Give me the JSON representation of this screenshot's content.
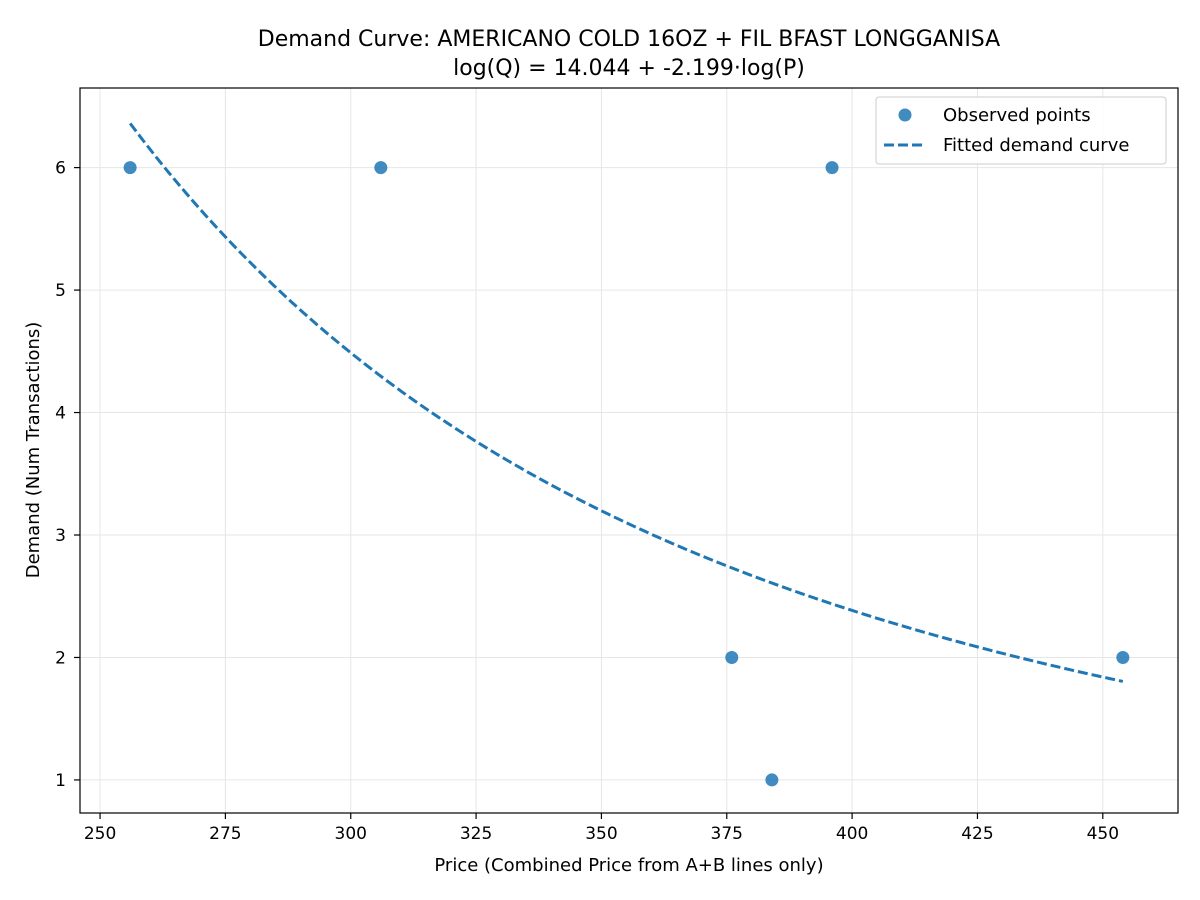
{
  "chart_data": {
    "type": "scatter",
    "title": "Demand Curve: AMERICANO COLD 16OZ + FIL BFAST LONGGANISA",
    "subtitle": "log(Q) = 14.044 + -2.199·log(P)",
    "xlabel": "Price (Combined Price from A+B lines only)",
    "ylabel": "Demand (Num Transactions)",
    "xlim": [
      246,
      465
    ],
    "ylim": [
      0.73,
      6.65
    ],
    "xticks": [
      250,
      275,
      300,
      325,
      350,
      375,
      400,
      425,
      450
    ],
    "yticks": [
      1,
      2,
      3,
      4,
      5,
      6
    ],
    "grid": true,
    "legend_position": "top-right",
    "colors": {
      "series": "#1f77b4",
      "grid": "#e6e6e6",
      "axis": "#000000"
    },
    "series": [
      {
        "name": "Observed points",
        "kind": "scatter",
        "points": [
          {
            "x": 256,
            "y": 6
          },
          {
            "x": 306,
            "y": 6
          },
          {
            "x": 376,
            "y": 2
          },
          {
            "x": 384,
            "y": 1
          },
          {
            "x": 396,
            "y": 6
          },
          {
            "x": 454,
            "y": 2
          }
        ]
      },
      {
        "name": "Fitted demand curve",
        "kind": "line",
        "style": "dashed",
        "model": {
          "intercept": 14.044,
          "slope": -2.199,
          "log": "natural"
        },
        "x_range": [
          256,
          454
        ]
      }
    ]
  }
}
